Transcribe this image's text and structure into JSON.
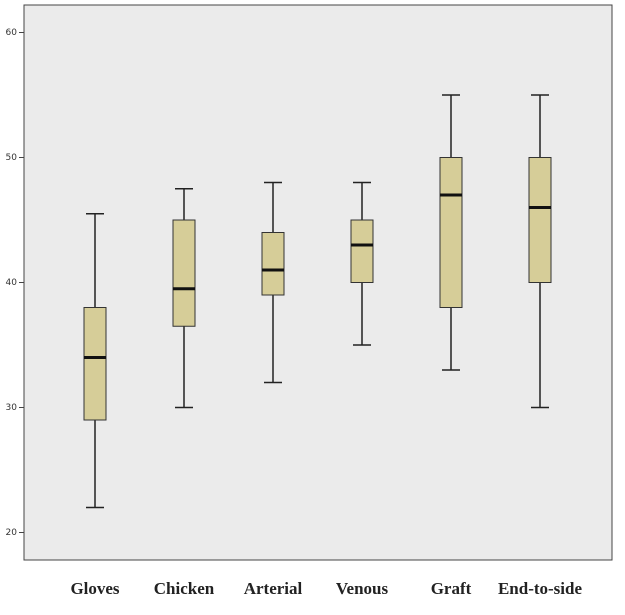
{
  "chart_data": {
    "type": "box",
    "categories": [
      "Gloves",
      "Chicken",
      "Arterial",
      "Venous",
      "Graft",
      "End-to-side"
    ],
    "min": [
      22,
      30,
      32,
      35,
      33,
      30
    ],
    "q1": [
      29,
      36.5,
      39,
      40,
      38,
      40
    ],
    "median": [
      34,
      39.5,
      41,
      43,
      47,
      46
    ],
    "q3": [
      38,
      45,
      44,
      45,
      50,
      50
    ],
    "max": [
      45.5,
      47.5,
      48,
      48,
      55,
      55
    ],
    "color": "#d6cd98",
    "ylim": [
      17.8,
      62.2
    ],
    "yticks": [
      20,
      30,
      40,
      50,
      60
    ]
  }
}
